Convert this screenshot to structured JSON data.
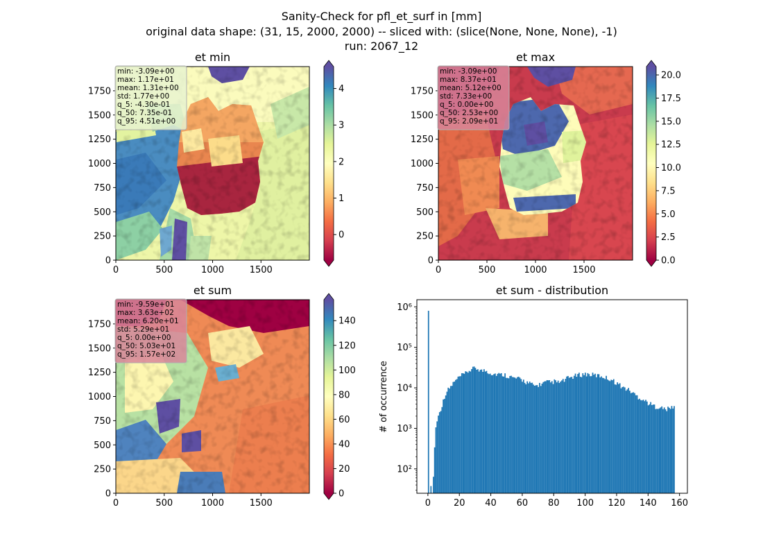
{
  "figure": {
    "title_lines": [
      "Sanity-Check for pfl_et_surf in [mm]",
      "original data shape: (31, 15, 2000, 2000) -- sliced with: (slice(None, None, None), -1)",
      "run: 2067_12"
    ]
  },
  "chart_data": [
    {
      "type": "heatmap",
      "title": "et min",
      "colormap": "Spectral",
      "x_ticks": [
        "0",
        "500",
        "1000",
        "1500"
      ],
      "y_ticks": [
        "0",
        "250",
        "500",
        "750",
        "1000",
        "1250",
        "1500",
        "1750"
      ],
      "xlim": [
        0,
        2000
      ],
      "ylim": [
        0,
        2000
      ],
      "colorbar": {
        "ticks": [
          "0",
          "1",
          "2",
          "3",
          "4"
        ],
        "range": [
          -0.7,
          4.6
        ],
        "extend": "both"
      },
      "stats": [
        "min: -3.09e+00",
        "max: 1.17e+01",
        "mean: 1.31e+00",
        "std: 1.77e+00",
        "q_5: -4.30e-01",
        "q_50: 7.35e-01",
        "q_95: 4.51e+00"
      ],
      "stats_box_color": "#e8f3d0"
    },
    {
      "type": "heatmap",
      "title": "et max",
      "colormap": "Spectral",
      "x_ticks": [
        "0",
        "500",
        "1000",
        "1500"
      ],
      "y_ticks": [
        "0",
        "250",
        "500",
        "750",
        "1000",
        "1250",
        "1500",
        "1750"
      ],
      "xlim": [
        0,
        2000
      ],
      "ylim": [
        0,
        2000
      ],
      "colorbar": {
        "ticks": [
          "0.0",
          "2.5",
          "5.0",
          "7.5",
          "10.0",
          "12.5",
          "15.0",
          "17.5",
          "20.0"
        ],
        "range": [
          0,
          20.9
        ],
        "extend": "both"
      },
      "stats": [
        "min: -3.09e+00",
        "max: 8.37e+01",
        "mean: 5.12e+00",
        "std: 7.33e+00",
        "q_5: 0.00e+00",
        "q_50: 2.53e+00",
        "q_95: 2.09e+01"
      ],
      "stats_box_color": "#d8869a"
    },
    {
      "type": "heatmap",
      "title": "et sum",
      "colormap": "Spectral",
      "x_ticks": [
        "0",
        "500",
        "1000",
        "1500"
      ],
      "y_ticks": [
        "0",
        "250",
        "500",
        "750",
        "1000",
        "1250",
        "1500",
        "1750"
      ],
      "xlim": [
        0,
        2000
      ],
      "ylim": [
        0,
        2000
      ],
      "colorbar": {
        "ticks": [
          "0",
          "20",
          "40",
          "60",
          "80",
          "100",
          "120",
          "140"
        ],
        "range": [
          0,
          157
        ],
        "extend": "both"
      },
      "stats": [
        "min: -9.59e+01",
        "max: 3.63e+02",
        "mean: 6.20e+01",
        "std: 5.29e+01",
        "q_5: 0.00e+00",
        "q_50: 5.03e+01",
        "q_95: 1.57e+02"
      ],
      "stats_box_color": "#d8869a"
    },
    {
      "type": "bar",
      "title": "et sum - distribution",
      "ylabel": "# of occurrence",
      "xlabel": "",
      "y_scale": "log",
      "x_ticks": [
        "0",
        "20",
        "40",
        "60",
        "80",
        "100",
        "120",
        "140",
        "160"
      ],
      "y_ticks": [
        "10²",
        "10³",
        "10⁴",
        "10⁵",
        "10⁶"
      ],
      "xlim": [
        -7,
        165
      ],
      "ylim": [
        25,
        1500000
      ],
      "color": "#1f77b4",
      "histogram": {
        "x_start": 0.0,
        "bin_width": 0.785,
        "spike": {
          "x": 0.0,
          "y": 800000
        },
        "counts_by_x": [
          [
            0.0,
            800000
          ],
          [
            0.8,
            8
          ],
          [
            1.6,
            40
          ],
          [
            2.4,
            4
          ],
          [
            3.2,
            80
          ],
          [
            4.0,
            400
          ],
          [
            5.0,
            1500
          ],
          [
            6.0,
            1800
          ],
          [
            7.0,
            2500
          ],
          [
            8.0,
            3200
          ],
          [
            9.0,
            4000
          ],
          [
            10.0,
            6000
          ],
          [
            12.0,
            8500
          ],
          [
            14.0,
            10500
          ],
          [
            16.0,
            13500
          ],
          [
            18.0,
            16000
          ],
          [
            20.0,
            19000
          ],
          [
            22.0,
            21000
          ],
          [
            24.0,
            23000
          ],
          [
            26.0,
            27000
          ],
          [
            28.0,
            29000
          ],
          [
            30.0,
            31000
          ],
          [
            32.0,
            29000
          ],
          [
            34.0,
            26000
          ],
          [
            36.0,
            27000
          ],
          [
            38.0,
            25000
          ],
          [
            40.0,
            23000
          ],
          [
            42.0,
            22000
          ],
          [
            44.0,
            22000
          ],
          [
            46.0,
            21000
          ],
          [
            48.0,
            21500
          ],
          [
            50.0,
            20000
          ],
          [
            52.0,
            19000
          ],
          [
            54.0,
            17500
          ],
          [
            56.0,
            17000
          ],
          [
            58.0,
            16500
          ],
          [
            60.0,
            15500
          ],
          [
            62.0,
            14000
          ],
          [
            64.0,
            13000
          ],
          [
            66.0,
            12000
          ],
          [
            68.0,
            11000
          ],
          [
            70.0,
            12000
          ],
          [
            72.0,
            12500
          ],
          [
            74.0,
            13500
          ],
          [
            76.0,
            14000
          ],
          [
            78.0,
            13500
          ],
          [
            80.0,
            14500
          ],
          [
            82.0,
            13500
          ],
          [
            84.0,
            14000
          ],
          [
            86.0,
            15000
          ],
          [
            88.0,
            17000
          ],
          [
            90.0,
            18000
          ],
          [
            92.0,
            19000
          ],
          [
            94.0,
            20000
          ],
          [
            96.0,
            21000
          ],
          [
            98.0,
            21500
          ],
          [
            100.0,
            22000
          ],
          [
            102.0,
            21500
          ],
          [
            104.0,
            21000
          ],
          [
            106.0,
            20500
          ],
          [
            108.0,
            20000
          ],
          [
            110.0,
            19500
          ],
          [
            112.0,
            18500
          ],
          [
            114.0,
            17000
          ],
          [
            116.0,
            16500
          ],
          [
            118.0,
            14500
          ],
          [
            120.0,
            13000
          ],
          [
            122.0,
            11500
          ],
          [
            124.0,
            10000
          ],
          [
            126.0,
            9500
          ],
          [
            128.0,
            8500
          ],
          [
            130.0,
            7500
          ],
          [
            132.0,
            6500
          ],
          [
            134.0,
            5800
          ],
          [
            136.0,
            5300
          ],
          [
            138.0,
            4700
          ],
          [
            140.0,
            4200
          ],
          [
            142.0,
            3800
          ],
          [
            144.0,
            3500
          ],
          [
            146.0,
            3400
          ],
          [
            148.0,
            3200
          ],
          [
            150.0,
            3000
          ],
          [
            152.0,
            3000
          ],
          [
            154.0,
            3200
          ],
          [
            156.0,
            3500
          ],
          [
            156.8,
            3800
          ]
        ]
      }
    }
  ]
}
